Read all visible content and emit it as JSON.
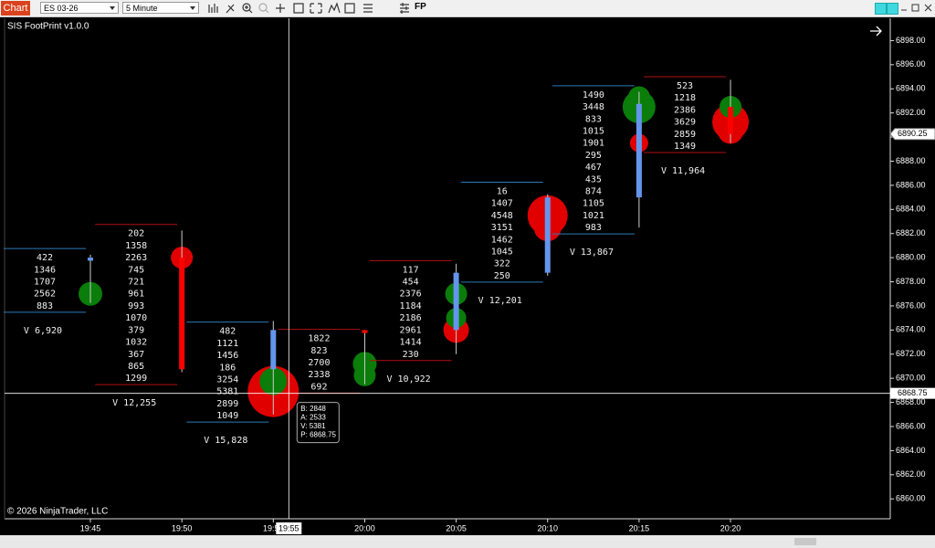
{
  "toolbar": {
    "chart_button": "Chart",
    "instrument": "ES 03-26",
    "interval": "5 Minute",
    "indicator": "FP"
  },
  "chart_data": {
    "type": "candlestick",
    "title": "SIS FootPrint v1.0.0",
    "copyright": "© 2026 NinjaTrader, LLC",
    "categories": [
      "19:45",
      "19:50",
      "19:55",
      "20:00",
      "20:05",
      "20:10",
      "20:15",
      "20:20"
    ],
    "ylim": [
      6858.35,
      6899.85
    ],
    "yticks": [
      {
        "value": 6860,
        "label": "6860.00"
      },
      {
        "value": 6862,
        "label": "6862.00"
      },
      {
        "value": 6864,
        "label": "6864.00"
      },
      {
        "value": 6866,
        "label": "6866.00"
      },
      {
        "value": 6868,
        "label": "6868.00"
      },
      {
        "value": 6870,
        "label": "6870.00"
      },
      {
        "value": 6872,
        "label": "6872.00"
      },
      {
        "value": 6874,
        "label": "6874.00"
      },
      {
        "value": 6876,
        "label": "6876.00"
      },
      {
        "value": 6878,
        "label": "6878.00"
      },
      {
        "value": 6880,
        "label": "6880.00"
      },
      {
        "value": 6882,
        "label": "6882.00"
      },
      {
        "value": 6884,
        "label": "6884.00"
      },
      {
        "value": 6886,
        "label": "6886.00"
      },
      {
        "value": 6888,
        "label": "6888.00"
      },
      {
        "value": 6890,
        "label": "6890.00"
      },
      {
        "value": 6892,
        "label": "6892.00"
      },
      {
        "value": 6894,
        "label": "6894.00"
      },
      {
        "value": 6896,
        "label": "6896.00"
      },
      {
        "value": 6898,
        "label": "6898.00"
      }
    ],
    "up_color": "#6495ed",
    "down_color": "#ff0000",
    "bars": [
      {
        "open": 6879.75,
        "high": 6880.25,
        "low": 6876.25,
        "close": 6880.0,
        "ladder_top": 6880.0,
        "ladder": [
          422,
          1346,
          1707,
          2562,
          883
        ],
        "volume": 6920,
        "volume_label": "V 6,920",
        "bracket_color": "#2a7ab8",
        "bubbles": [
          {
            "price": 6877.0,
            "size": 13,
            "color": "#0a7d0a"
          }
        ]
      },
      {
        "open": 6880.0,
        "high": 6882.25,
        "low": 6870.5,
        "close": 6870.75,
        "ladder_top": 6882.0,
        "ladder": [
          202,
          1358,
          2263,
          745,
          721,
          961,
          993,
          1070,
          379,
          1032,
          367,
          865,
          1299
        ],
        "volume": 12255,
        "volume_label": "V 12,255",
        "bracket_color": "#b01010",
        "bubbles": [
          {
            "price": 6880.0,
            "size": 12,
            "color": "#e00000"
          }
        ]
      },
      {
        "open": 6870.75,
        "high": 6874.75,
        "low": 6867.0,
        "close": 6874.0,
        "ladder_top": 6873.9,
        "ladder": [
          482,
          1121,
          1456,
          186,
          3254,
          5381,
          2899,
          1049
        ],
        "volume": 15828,
        "volume_label": "V 15,828",
        "bracket_color": "#2a7ab8",
        "bubbles": [
          {
            "price": 6868.9,
            "size": 28,
            "color": "#e00000"
          },
          {
            "price": 6869.75,
            "size": 15,
            "color": "#0a7d0a"
          }
        ]
      },
      {
        "open": 6874.0,
        "high": 6874.0,
        "low": 6869.5,
        "close": 6873.75,
        "ladder_top": 6873.3,
        "ladder": [
          1822,
          823,
          2700,
          2338,
          692
        ],
        "bracket_color": "#b01010",
        "bubbles": [
          {
            "price": 6870.25,
            "size": 12,
            "color": "#0a7d0a"
          },
          {
            "price": 6871.2,
            "size": 13,
            "color": "#0a7d0a"
          }
        ]
      },
      {
        "open": 6874.0,
        "high": 6879.5,
        "low": 6872.0,
        "close": 6878.75,
        "ladder_top": 6879.0,
        "ladder": [
          117,
          454,
          2376,
          1184,
          2186,
          2961,
          1414,
          230
        ],
        "volume": 10922,
        "volume_label": "V 10,922",
        "bracket_color": "#b01010",
        "bubbles": [
          {
            "price": 6874.0,
            "size": 14,
            "color": "#e00000"
          },
          {
            "price": 6875.0,
            "size": 11,
            "color": "#0a7d0a"
          },
          {
            "price": 6877.0,
            "size": 12,
            "color": "#0a7d0a"
          }
        ]
      },
      {
        "open": 6878.75,
        "high": 6885.25,
        "low": 6878.5,
        "close": 6885.0,
        "ladder_top": 6885.5,
        "ladder": [
          16,
          1407,
          4548,
          3151,
          1462,
          1045,
          322,
          250
        ],
        "volume": 12201,
        "volume_label": "V 12,201",
        "bracket_color": "#2a7ab8",
        "bubbles": [
          {
            "price": 6882.5,
            "size": 15,
            "color": "#e00000"
          },
          {
            "price": 6883.5,
            "size": 22,
            "color": "#e00000"
          }
        ]
      },
      {
        "open": 6885.0,
        "high": 6893.75,
        "low": 6882.5,
        "close": 6892.75,
        "ladder_top": 6893.5,
        "ladder": [
          1490,
          3448,
          833,
          1015,
          1901,
          295,
          467,
          435,
          874,
          1105,
          1021,
          983
        ],
        "volume": 13867,
        "volume_label": "V 13,867",
        "bracket_color": "#2a7ab8",
        "bubbles": [
          {
            "price": 6889.5,
            "size": 10,
            "color": "#e00000"
          },
          {
            "price": 6893.3,
            "size": 12,
            "color": "#0a7d0a"
          },
          {
            "price": 6892.5,
            "size": 18,
            "color": "#0a7d0a"
          }
        ]
      },
      {
        "open": 6892.5,
        "high": 6894.75,
        "low": 6889.5,
        "close": 6890.25,
        "ladder_top": 6894.25,
        "ladder": [
          523,
          1218,
          2386,
          3629,
          2859,
          1349
        ],
        "volume": 11964,
        "volume_label": "V 11,964",
        "bracket_color": "#b01010",
        "bubbles": [
          {
            "price": 6891.25,
            "size": 20,
            "color": "#e00000"
          },
          {
            "price": 6890.5,
            "size": 14,
            "color": "#e00000"
          },
          {
            "price": 6892.5,
            "size": 12,
            "color": "#0a7d0a"
          }
        ]
      }
    ],
    "last_price": {
      "value": 6890.25,
      "label": "6890.25"
    },
    "crosshair": {
      "value": 6868.75,
      "label": "6868.75",
      "time_label": "19:55"
    },
    "tooltip": [
      "B: 2848",
      "A: 2533",
      "V: 5381",
      "P: 6868.75"
    ]
  }
}
